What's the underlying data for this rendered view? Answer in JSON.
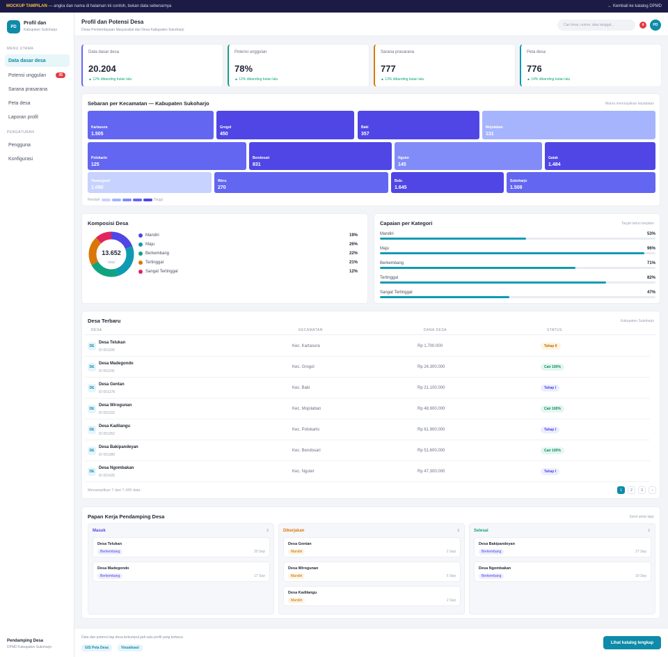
{
  "topbar": {
    "mockup_label": "MOCKUP TAMPILAN",
    "disclaimer": " — angka dan nama di halaman ini contoh, bukan data sebenarnya",
    "back_link": "Kembali ke katalog DPMD"
  },
  "sidebar": {
    "logo": "PD",
    "app_title": "Profil dan",
    "app_subtitle": "Kabupaten Sukoharjo",
    "section_main": "MENU UTAMA",
    "section_settings": "PENGATURAN",
    "items": [
      {
        "label": "Data dasar desa",
        "active": true
      },
      {
        "label": "Potensi unggulan",
        "badge": "35"
      },
      {
        "label": "Sarana prasarana"
      },
      {
        "label": "Peta desa"
      },
      {
        "label": "Laporan profil"
      }
    ],
    "settings_items": [
      {
        "label": "Pengguna"
      },
      {
        "label": "Konfigurasi"
      }
    ],
    "footer_name": "Pendamping Desa",
    "footer_sub": "DPMD Kabupaten Sukoharjo"
  },
  "header": {
    "title": "Profil dan Potensi Desa",
    "subtitle": "Dinas Pemberdayaan Masyarakat dan Desa Kabupaten Sukoharjo",
    "search_placeholder": "Cari desa, nomor, atau tanggal...",
    "notif_count": "4",
    "avatar": "PD"
  },
  "stats": [
    {
      "label": "Data dasar desa",
      "value": "20.204",
      "delta": "▲ 12% dibanding bulan lalu",
      "color": "#6366f1"
    },
    {
      "label": "Potensi unggulan",
      "value": "78%",
      "delta": "▲ 12% dibanding bulan lalu",
      "color": "#10a37f"
    },
    {
      "label": "Sarana prasarana",
      "value": "777",
      "delta": "▲ 13% dibanding bulan lalu",
      "color": "#d97706"
    },
    {
      "label": "Peta desa",
      "value": "776",
      "delta": "▲ 14% dibanding bulan lalu",
      "color": "#0e9ab3"
    }
  ],
  "treemap": {
    "title": "Sebaran per Kecamatan — Kabupaten Sukoharjo",
    "note": "Warna menunjukkan kepadatan",
    "legend_low": "Rendah",
    "legend_high": "Tinggi",
    "tiles": [
      {
        "name": "Kartasura",
        "value": "1.505",
        "color": "#6366f1"
      },
      {
        "name": "Grogol",
        "value": "450",
        "color": "#4f46e5"
      },
      {
        "name": "Baki",
        "value": "357",
        "color": "#4f46e5"
      },
      {
        "name": "Mojolaban",
        "value": "131",
        "color": "#a5b4fc"
      },
      {
        "name": "Polokarto",
        "value": "125",
        "color": "#6366f1"
      },
      {
        "name": "Bendosari",
        "value": "831",
        "color": "#4f46e5"
      },
      {
        "name": "Nguter",
        "value": "145",
        "color": "#818cf8"
      },
      {
        "name": "Gatak",
        "value": "1.484",
        "color": "#4f46e5"
      },
      {
        "name": "Tawangsari",
        "value": "1.090",
        "color": "#c7d2fe"
      },
      {
        "name": "Weru",
        "value": "270",
        "color": "#6366f1"
      },
      {
        "name": "Bulu",
        "value": "1.645",
        "color": "#4f46e5"
      },
      {
        "name": "Sukoharjo",
        "value": "1.508",
        "color": "#6366f1"
      }
    ]
  },
  "composition": {
    "title": "Komposisi Desa",
    "total": "13.652",
    "total_label": "total",
    "items": [
      {
        "label": "Mandiri",
        "pct": "19%",
        "value": 19,
        "color": "#4f46e5"
      },
      {
        "label": "Maju",
        "pct": "26%",
        "value": 26,
        "color": "#0e9ab3"
      },
      {
        "label": "Berkembang",
        "pct": "22%",
        "value": 22,
        "color": "#10a37f"
      },
      {
        "label": "Tertinggal",
        "pct": "21%",
        "value": 21,
        "color": "#d97706"
      },
      {
        "label": "Sangat Tertinggal",
        "pct": "12%",
        "value": 12,
        "color": "#e0245e"
      }
    ]
  },
  "achievement": {
    "title": "Capaian per Kategori",
    "note": "Target tahun berjalan",
    "items": [
      {
        "label": "Mandiri",
        "pct": "53%",
        "value": 53
      },
      {
        "label": "Maju",
        "pct": "96%",
        "value": 96
      },
      {
        "label": "Berkembang",
        "pct": "71%",
        "value": 71
      },
      {
        "label": "Tertinggal",
        "pct": "82%",
        "value": 82
      },
      {
        "label": "Sangat Tertinggal",
        "pct": "47%",
        "value": 47
      }
    ]
  },
  "table": {
    "title": "Desa Terbaru",
    "note": "Kabupaten Sukoharjo",
    "columns": [
      "DESA",
      "KECAMATAN",
      "DANA DESA",
      "STATUS"
    ],
    "rows": [
      {
        "icon": "DE",
        "name": "Desa Telukan",
        "id": "ID 001206",
        "kecamatan": "Kec. Kartasura",
        "dana": "Rp 1.700.000",
        "status": "Tahap II",
        "status_kind": "warn"
      },
      {
        "icon": "DE",
        "name": "Desa Madegondo",
        "id": "ID 001241",
        "kecamatan": "Kec. Grogol",
        "dana": "Rp 24.300.000",
        "status": "Cair 100%",
        "status_kind": "ok"
      },
      {
        "icon": "DE",
        "name": "Desa Gentan",
        "id": "ID 001278",
        "kecamatan": "Kec. Baki",
        "dana": "Rp 21.100.000",
        "status": "Tahap I",
        "status_kind": "info"
      },
      {
        "icon": "DE",
        "name": "Desa Wirogunan",
        "id": "ID 001315",
        "kecamatan": "Kec. Mojolaban",
        "dana": "Rp 48.900.000",
        "status": "Cair 100%",
        "status_kind": "ok"
      },
      {
        "icon": "DE",
        "name": "Desa Kadilangu",
        "id": "ID 001352",
        "kecamatan": "Kec. Polokarto",
        "dana": "Rp 61.900.000",
        "status": "Tahap I",
        "status_kind": "info"
      },
      {
        "icon": "DE",
        "name": "Desa Bakipandeyan",
        "id": "ID 001389",
        "kecamatan": "Kec. Bendosari",
        "dana": "Rp 51.600.000",
        "status": "Cair 100%",
        "status_kind": "ok"
      },
      {
        "icon": "DE",
        "name": "Desa Ngombakan",
        "id": "ID 001426",
        "kecamatan": "Kec. Nguter",
        "dana": "Rp 47.300.000",
        "status": "Tahap I",
        "status_kind": "info"
      }
    ],
    "footer": "Menampilkan 7 dari 7.439 data",
    "pages": [
      "1",
      "2",
      "3",
      "›"
    ]
  },
  "kanban": {
    "title": "Papan Kerja Pendamping Desa",
    "note": "Seret antar lajur",
    "columns": [
      {
        "title": "Masuk",
        "count": "2",
        "color": "#4f46e5",
        "cards": [
          {
            "name": "Desa Telukan",
            "tag": "Berkembang",
            "date": "20 Sep"
          },
          {
            "name": "Desa Madegondo",
            "tag": "Berkembang",
            "date": "17 Sep"
          }
        ]
      },
      {
        "title": "Dikerjakan",
        "count": "3",
        "color": "#d97706",
        "cards": [
          {
            "name": "Desa Gentan",
            "tag": "Mandiri",
            "date": "2 Sep"
          },
          {
            "name": "Desa Wirogunan",
            "tag": "Mandiri",
            "date": "5 Sep"
          },
          {
            "name": "Desa Kadilangu",
            "tag": "Mandiri",
            "date": "2 Sep"
          }
        ]
      },
      {
        "title": "Selesai",
        "count": "2",
        "color": "#10a37f",
        "cards": [
          {
            "name": "Desa Bakipandeyan",
            "tag": "Berkembang",
            "date": "27 Sep"
          },
          {
            "name": "Desa Ngombakan",
            "tag": "Berkembang",
            "date": "19 Sep"
          }
        ]
      }
    ]
  },
  "footer": {
    "text": "Data dan potensi tiap desa terkumpul jadi satu profil yang terbarui.",
    "chips": [
      "GIS Peta Desa",
      "Visualisasi"
    ],
    "cta": "Lihat katalog lengkap"
  }
}
